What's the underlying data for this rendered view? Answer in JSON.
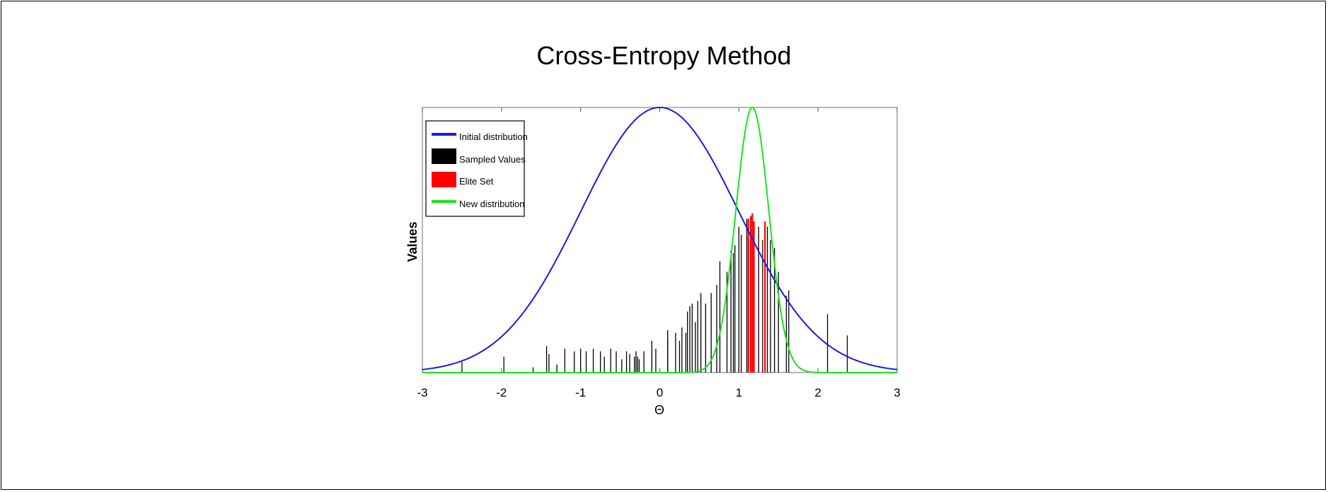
{
  "slide": {
    "title": "Cross-Entropy Method"
  },
  "chart_data": {
    "type": "line",
    "title": "",
    "xlabel": "Θ",
    "ylabel": "Values",
    "xlim": [
      -3,
      3
    ],
    "ylim": [
      0,
      1
    ],
    "xticks": [
      "-3",
      "-2",
      "-1",
      "0",
      "1",
      "2",
      "3"
    ],
    "grid": false,
    "legend_position": "top-left",
    "legend": [
      "Initial distribution",
      "Sampled Values",
      "Elite Set",
      "New distribution"
    ],
    "colors": {
      "initial": "#1a1ae6",
      "sampled": "#000000",
      "elite": "#ff0000",
      "new": "#19e619"
    },
    "series": [
      {
        "name": "Initial distribution",
        "kind": "gaussian",
        "mean": 0.0,
        "std": 1.0,
        "peak": 1.0
      },
      {
        "name": "New distribution",
        "kind": "gaussian",
        "mean": 1.17,
        "std": 0.21,
        "peak": 1.0
      }
    ],
    "sampled_values": [
      [
        -2.5,
        0.04
      ],
      [
        -1.97,
        0.06
      ],
      [
        -1.6,
        0.02
      ],
      [
        -1.43,
        0.1
      ],
      [
        -1.4,
        0.07
      ],
      [
        -1.3,
        0.03
      ],
      [
        -1.2,
        0.09
      ],
      [
        -1.08,
        0.08
      ],
      [
        -1.0,
        0.09
      ],
      [
        -0.93,
        0.08
      ],
      [
        -0.84,
        0.09
      ],
      [
        -0.75,
        0.08
      ],
      [
        -0.7,
        0.06
      ],
      [
        -0.62,
        0.09
      ],
      [
        -0.55,
        0.08
      ],
      [
        -0.48,
        0.05
      ],
      [
        -0.42,
        0.08
      ],
      [
        -0.38,
        0.07
      ],
      [
        -0.32,
        0.06
      ],
      [
        -0.3,
        0.08
      ],
      [
        -0.28,
        0.06
      ],
      [
        -0.26,
        0.05
      ],
      [
        -0.2,
        0.08
      ],
      [
        -0.1,
        0.12
      ],
      [
        -0.05,
        0.09
      ],
      [
        0.1,
        0.13
      ],
      [
        0.1,
        0.16
      ],
      [
        0.2,
        0.15
      ],
      [
        0.25,
        0.12
      ],
      [
        0.28,
        0.17
      ],
      [
        0.33,
        0.15
      ],
      [
        0.35,
        0.23
      ],
      [
        0.38,
        0.25
      ],
      [
        0.41,
        0.26
      ],
      [
        0.45,
        0.19
      ],
      [
        0.48,
        0.27
      ],
      [
        0.52,
        0.3
      ],
      [
        0.58,
        0.26
      ],
      [
        0.65,
        0.3
      ],
      [
        0.72,
        0.33
      ],
      [
        0.76,
        0.42
      ],
      [
        0.85,
        0.38
      ],
      [
        0.9,
        0.46
      ],
      [
        0.93,
        0.45
      ],
      [
        0.95,
        0.48
      ],
      [
        1.0,
        0.55
      ],
      [
        1.03,
        0.52
      ],
      [
        1.1,
        0.58
      ],
      [
        1.25,
        0.55
      ],
      [
        1.3,
        0.5
      ],
      [
        1.36,
        0.55
      ],
      [
        1.4,
        0.5
      ],
      [
        1.45,
        0.47
      ],
      [
        1.5,
        0.38
      ],
      [
        1.6,
        0.29
      ],
      [
        1.63,
        0.31
      ],
      [
        2.12,
        0.22
      ],
      [
        2.37,
        0.14
      ]
    ],
    "elite_values": [
      [
        1.12,
        0.58
      ],
      [
        1.15,
        0.59
      ],
      [
        1.17,
        0.6
      ],
      [
        1.19,
        0.57
      ],
      [
        1.33,
        0.57
      ]
    ]
  }
}
